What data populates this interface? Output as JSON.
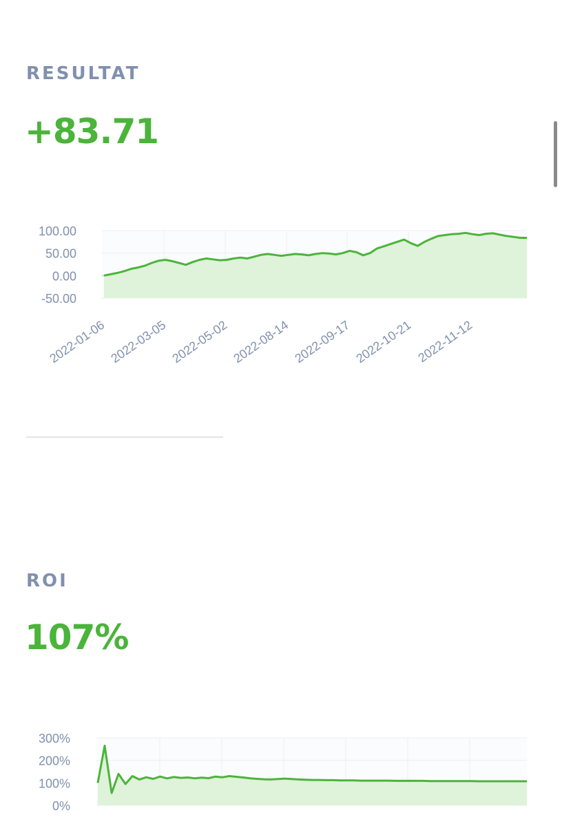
{
  "result_section": {
    "label": "RESULTAT",
    "value": "+83.71"
  },
  "roi_section": {
    "label": "ROI",
    "value": "107%"
  },
  "colors": {
    "accent": "#4bb43a",
    "fill": "#dff2da",
    "label": "#8090ad",
    "grid": "#ebeef3"
  },
  "chart_data": [
    {
      "type": "area",
      "name": "resultat-chart",
      "x_tick_labels": [
        "2022-01-06",
        "2022-03-05",
        "2022-05-02",
        "2022-08-14",
        "2022-09-17",
        "2022-10-21",
        "2022-11-12"
      ],
      "y_tick_labels": [
        "100.00",
        "50.00",
        "0.00",
        "-50.00"
      ],
      "ylim": [
        -50,
        100
      ],
      "grid": true,
      "series": [
        {
          "values": [
            0,
            3,
            6,
            10,
            15,
            18,
            22,
            28,
            33,
            35,
            32,
            28,
            24,
            30,
            35,
            38,
            36,
            34,
            35,
            38,
            40,
            38,
            42,
            46,
            48,
            46,
            44,
            46,
            48,
            47,
            45,
            48,
            50,
            49,
            47,
            50,
            55,
            52,
            45,
            50,
            60,
            65,
            70,
            75,
            80,
            72,
            66,
            75,
            82,
            88,
            90,
            92,
            93,
            95,
            92,
            90,
            93,
            94,
            91,
            88,
            86,
            84,
            84
          ]
        }
      ]
    },
    {
      "type": "area",
      "name": "roi-chart",
      "y_tick_labels": [
        "300%",
        "200%",
        "100%",
        "0%"
      ],
      "ylim": [
        0,
        300
      ],
      "grid": true,
      "series": [
        {
          "values": [
            100,
            265,
            55,
            140,
            95,
            130,
            115,
            125,
            118,
            128,
            120,
            126,
            122,
            124,
            120,
            123,
            121,
            128,
            125,
            130,
            127,
            124,
            120,
            118,
            116,
            115,
            117,
            119,
            117,
            115,
            114,
            113,
            113,
            112,
            112,
            111,
            111,
            111,
            110,
            110,
            110,
            110,
            110,
            109,
            109,
            109,
            109,
            109,
            108,
            108,
            108,
            108,
            108,
            108,
            108,
            107,
            107,
            107,
            107,
            107,
            107,
            107,
            107
          ]
        }
      ]
    }
  ]
}
